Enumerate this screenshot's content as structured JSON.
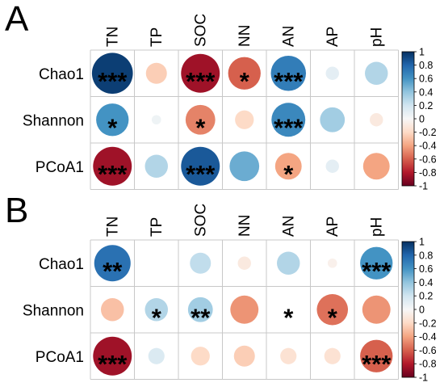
{
  "chart_data": [
    {
      "type": "heatmap",
      "panel_label": "A",
      "columns": [
        "TN",
        "TP",
        "SOC",
        "NN",
        "AN",
        "AP",
        "pH"
      ],
      "rows": [
        "Chao1",
        "Shannon",
        "PCoA1"
      ],
      "values": [
        [
          0.95,
          -0.25,
          -0.85,
          -0.6,
          0.7,
          0.1,
          0.3
        ],
        [
          0.6,
          0.05,
          -0.5,
          -0.2,
          0.65,
          0.35,
          -0.1
        ],
        [
          -0.85,
          0.3,
          0.85,
          0.5,
          -0.4,
          0.1,
          -0.4
        ]
      ],
      "significance": [
        [
          "***",
          "",
          "***",
          "*",
          "***",
          "",
          ""
        ],
        [
          "*",
          "",
          "*",
          "",
          "***",
          "",
          ""
        ],
        [
          "***",
          "",
          "***",
          "",
          "*",
          "",
          ""
        ]
      ],
      "colorbar": {
        "range": [
          -1,
          1
        ],
        "ticks": [
          "1",
          "0.8",
          "0.6",
          "0.4",
          "0.2",
          "0",
          "-0.2",
          "-0.4",
          "-0.6",
          "-0.8",
          "-1"
        ]
      },
      "colors": {
        "negative": "#67001f",
        "neutral": "#f7f7f7",
        "positive": "#053061"
      }
    },
    {
      "type": "heatmap",
      "panel_label": "B",
      "columns": [
        "TN",
        "TP",
        "SOC",
        "NN",
        "AN",
        "AP",
        "pH"
      ],
      "rows": [
        "Chao1",
        "Shannon",
        "PCoA1"
      ],
      "values": [
        [
          0.75,
          0.0,
          0.25,
          -0.1,
          0.3,
          -0.05,
          0.6
        ],
        [
          -0.3,
          0.3,
          0.35,
          -0.45,
          0.0,
          -0.55,
          -0.45
        ],
        [
          -0.85,
          0.15,
          -0.2,
          -0.25,
          -0.15,
          -0.15,
          -0.6
        ]
      ],
      "significance": [
        [
          "**",
          "",
          "",
          "",
          "",
          "",
          "***"
        ],
        [
          "",
          "*",
          "**",
          "",
          "*",
          "*",
          ""
        ],
        [
          "***",
          "",
          "",
          "",
          "",
          "",
          "***"
        ]
      ],
      "colorbar": {
        "range": [
          -1,
          1
        ],
        "ticks": [
          "1",
          "0.8",
          "0.6",
          "0.4",
          "0.2",
          "0",
          "-0.2",
          "-0.4",
          "-0.6",
          "-0.8",
          "-1"
        ]
      },
      "colors": {
        "negative": "#67001f",
        "neutral": "#f7f7f7",
        "positive": "#053061"
      }
    }
  ]
}
